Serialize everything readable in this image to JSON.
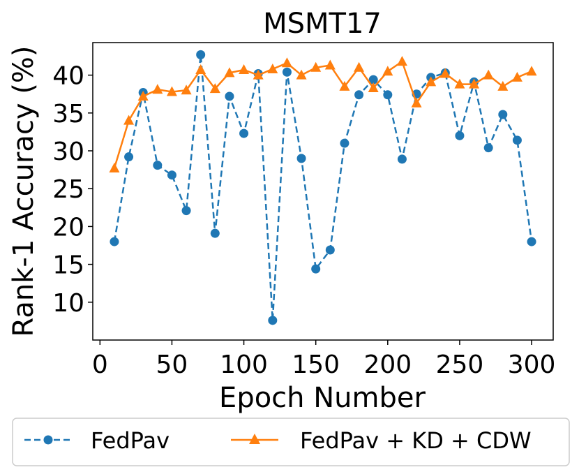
{
  "chart_data": {
    "type": "line",
    "title": "MSMT17",
    "xlabel": "Epoch Number",
    "ylabel": "Rank-1 Accuracy (%)",
    "xlim": [
      -5,
      315
    ],
    "ylim": [
      5,
      44.3
    ],
    "xticks": [
      0,
      50,
      100,
      150,
      200,
      250,
      300
    ],
    "yticks": [
      10,
      15,
      20,
      25,
      30,
      35,
      40
    ],
    "x": [
      10,
      20,
      30,
      40,
      50,
      60,
      70,
      80,
      90,
      100,
      110,
      120,
      130,
      140,
      150,
      160,
      170,
      180,
      190,
      200,
      210,
      220,
      230,
      240,
      250,
      260,
      270,
      280,
      290,
      300
    ],
    "series": [
      {
        "name": "FedPav",
        "color": "#1f77b4",
        "line_style": "dashed",
        "marker": "circle",
        "values": [
          18.0,
          29.2,
          37.7,
          28.1,
          26.8,
          22.1,
          42.7,
          19.1,
          37.2,
          32.3,
          40.2,
          7.6,
          40.4,
          29.0,
          14.4,
          16.9,
          31.0,
          37.4,
          39.4,
          37.4,
          28.9,
          37.5,
          39.7,
          40.3,
          32.0,
          39.1,
          30.4,
          34.8,
          31.4,
          18.0
        ]
      },
      {
        "name": "FedPav + KD + CDW",
        "color": "#ff7f0e",
        "line_style": "solid",
        "marker": "triangle",
        "values": [
          27.7,
          34.0,
          37.2,
          38.1,
          37.8,
          38.0,
          40.7,
          38.2,
          40.3,
          40.7,
          40.0,
          40.8,
          41.6,
          40.0,
          41.0,
          41.3,
          38.5,
          41.0,
          38.3,
          40.5,
          41.8,
          36.3,
          39.1,
          40.2,
          38.8,
          38.8,
          40.0,
          38.5,
          39.7,
          40.5
        ]
      }
    ],
    "legend_position": "bottom"
  }
}
